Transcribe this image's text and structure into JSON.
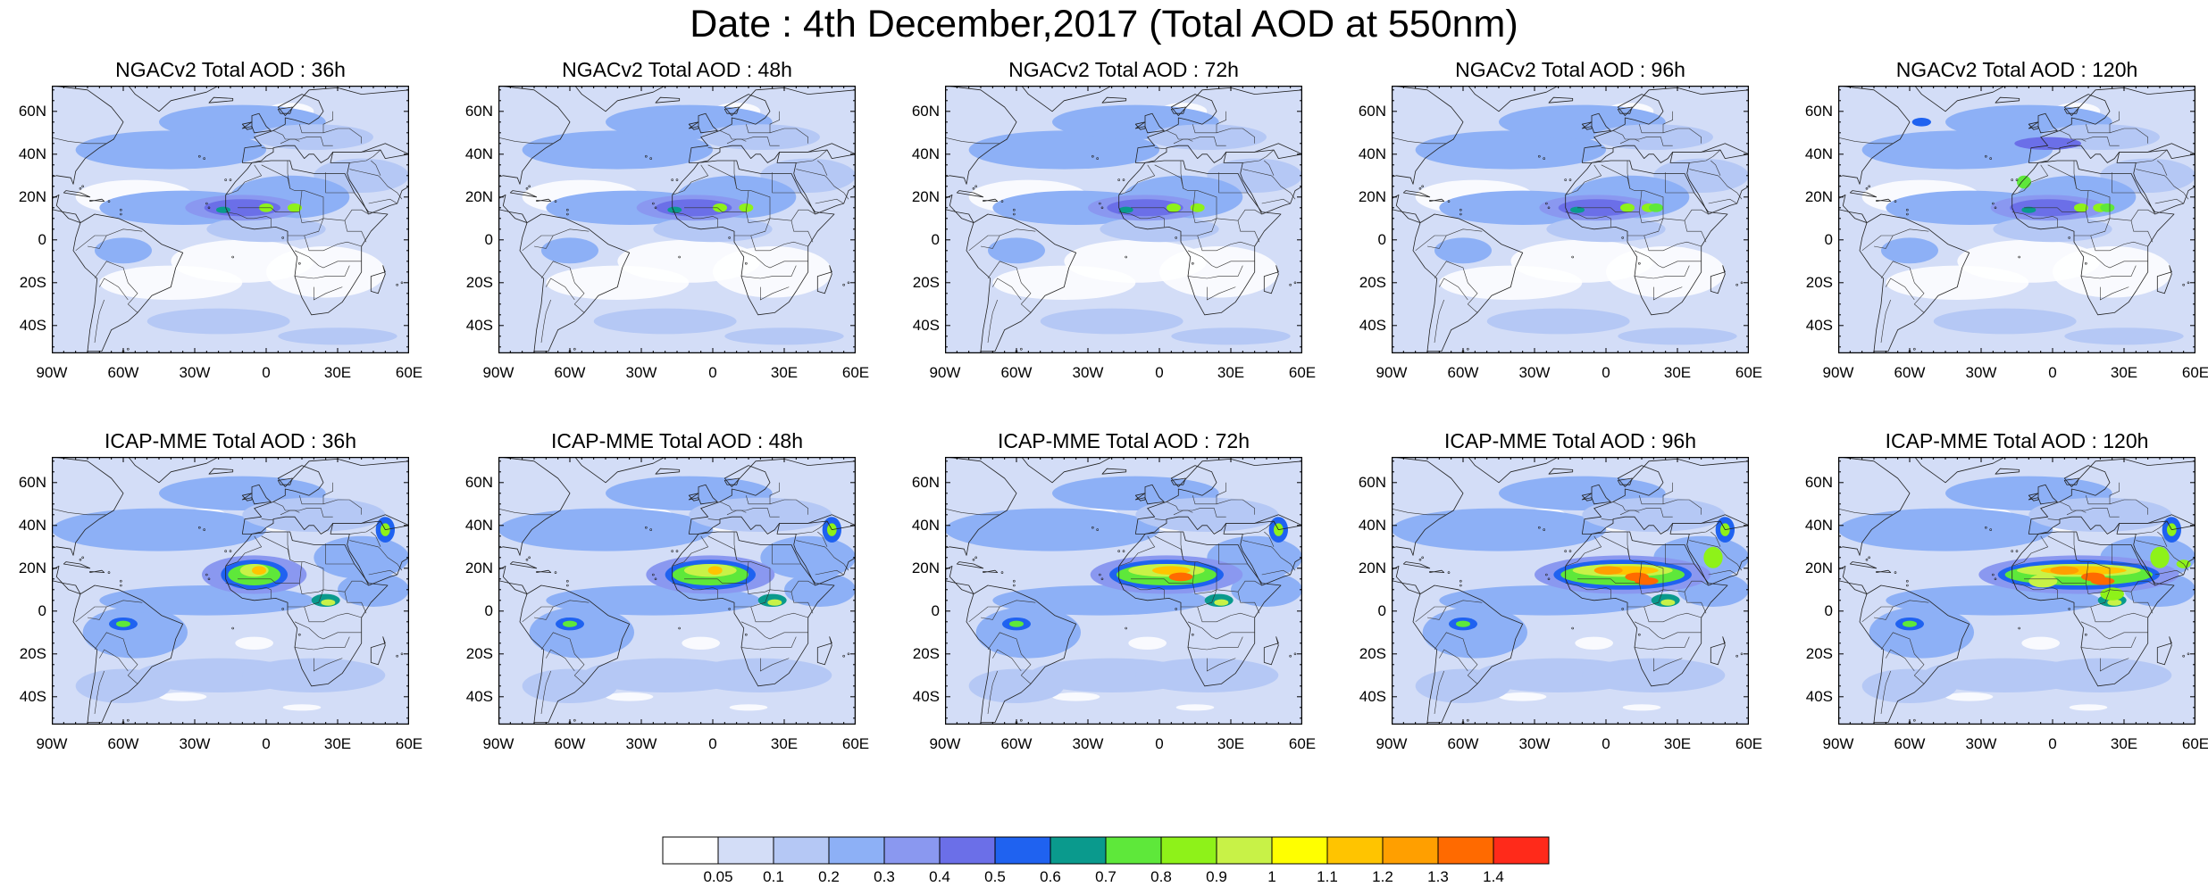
{
  "title": "Date : 4th December,2017 (Total AOD at 550nm)",
  "lat_ticks": [
    "60N",
    "40N",
    "20N",
    "0",
    "20S",
    "40S"
  ],
  "lon_ticks": [
    "90W",
    "60W",
    "30W",
    "0",
    "30E",
    "60E"
  ],
  "colorbar": {
    "labels": [
      "0.05",
      "0.1",
      "0.2",
      "0.3",
      "0.4",
      "0.5",
      "0.6",
      "0.7",
      "0.8",
      "0.9",
      "1",
      "1.1",
      "1.2",
      "1.3",
      "1.4"
    ],
    "colors": [
      "#ffffff",
      "#d3ddf7",
      "#b5c8f5",
      "#8db0f6",
      "#8a98f0",
      "#6b6fe8",
      "#1f62f0",
      "#0a9a8d",
      "#5ee83a",
      "#8ef219",
      "#c8f247",
      "#ffff00",
      "#ffc400",
      "#ff9f00",
      "#ff6a00",
      "#ff2a1a"
    ]
  },
  "panels": [
    {
      "title": "NGACv2 Total AOD : 36h"
    },
    {
      "title": "NGACv2 Total AOD : 48h"
    },
    {
      "title": "NGACv2 Total AOD : 72h"
    },
    {
      "title": "NGACv2 Total AOD : 96h"
    },
    {
      "title": "NGACv2 Total AOD : 120h"
    },
    {
      "title": "ICAP-MME Total AOD : 36h"
    },
    {
      "title": "ICAP-MME Total AOD : 48h"
    },
    {
      "title": "ICAP-MME Total AOD : 72h"
    },
    {
      "title": "ICAP-MME Total AOD : 96h"
    },
    {
      "title": "ICAP-MME Total AOD : 120h"
    }
  ]
}
